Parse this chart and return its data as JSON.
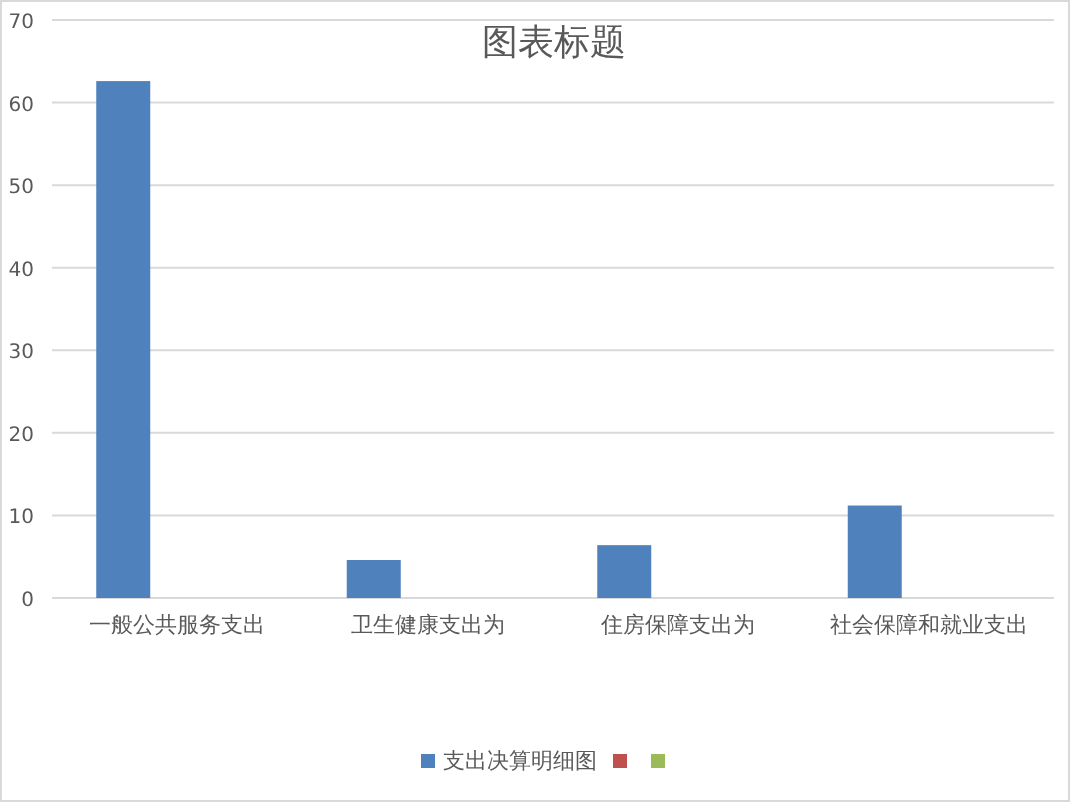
{
  "chart_data": {
    "type": "bar",
    "title": "图表标题",
    "categories": [
      "一般公共服务支出",
      "卫生健康支出为",
      "住房保障支出为",
      "社会保障和就业支出"
    ],
    "series": [
      {
        "name": "支出决算明细图",
        "color": "#4f81bd",
        "values": [
          62.6,
          4.6,
          6.4,
          11.2
        ]
      },
      {
        "color": "#c0504d",
        "values": [
          null,
          null,
          null,
          null
        ]
      },
      {
        "color": "#9bbb59",
        "values": [
          null,
          null,
          null,
          null
        ]
      }
    ],
    "ylim": [
      0,
      70
    ],
    "yticks": [
      0,
      10,
      20,
      30,
      40,
      50,
      60,
      70
    ],
    "grid": "y",
    "legend": "bottom"
  }
}
